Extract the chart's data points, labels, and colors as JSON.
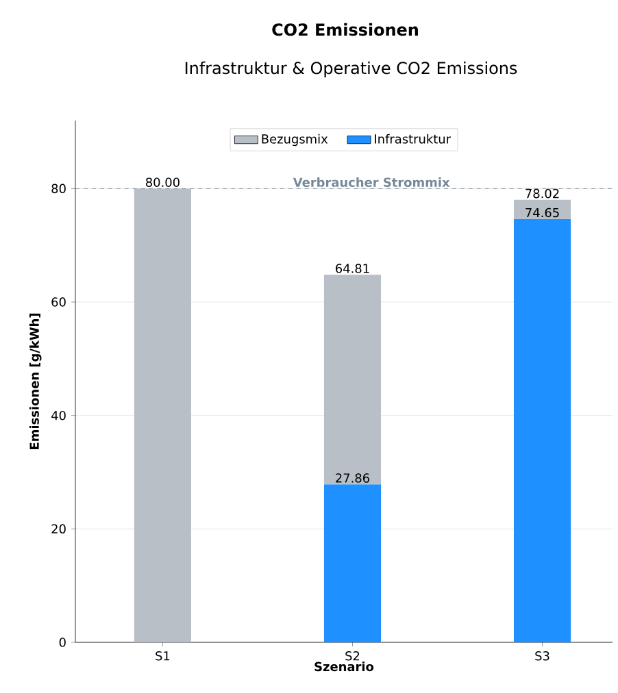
{
  "chart_data": {
    "type": "bar",
    "title": "CO2 Emissionen",
    "subtitle": "Infrastruktur & Operative CO2 Emissions",
    "xlabel": "Szenario",
    "ylabel": "Emissionen [g/kWh]",
    "categories": [
      "S1",
      "S2",
      "S3"
    ],
    "stacked": true,
    "series": [
      {
        "name": "Infrastruktur",
        "color": "#1e90ff",
        "values": [
          null,
          27.86,
          74.65
        ],
        "value_labels": [
          null,
          "27.86",
          "74.65"
        ]
      },
      {
        "name": "Bezugsmix",
        "color": "#b8bfc6",
        "values": [
          80.0,
          36.95,
          3.37
        ]
      }
    ],
    "totals": [
      "80.00",
      "64.81",
      "78.02"
    ],
    "ylim": [
      0,
      92
    ],
    "yticks": [
      0,
      20,
      40,
      60,
      80
    ],
    "grid": "y",
    "legend": "top",
    "ref_lines": [
      {
        "axis": "y",
        "value": 80,
        "label": "Verbraucher Strommix",
        "color": "#778899",
        "line_style": "dashed"
      }
    ]
  }
}
